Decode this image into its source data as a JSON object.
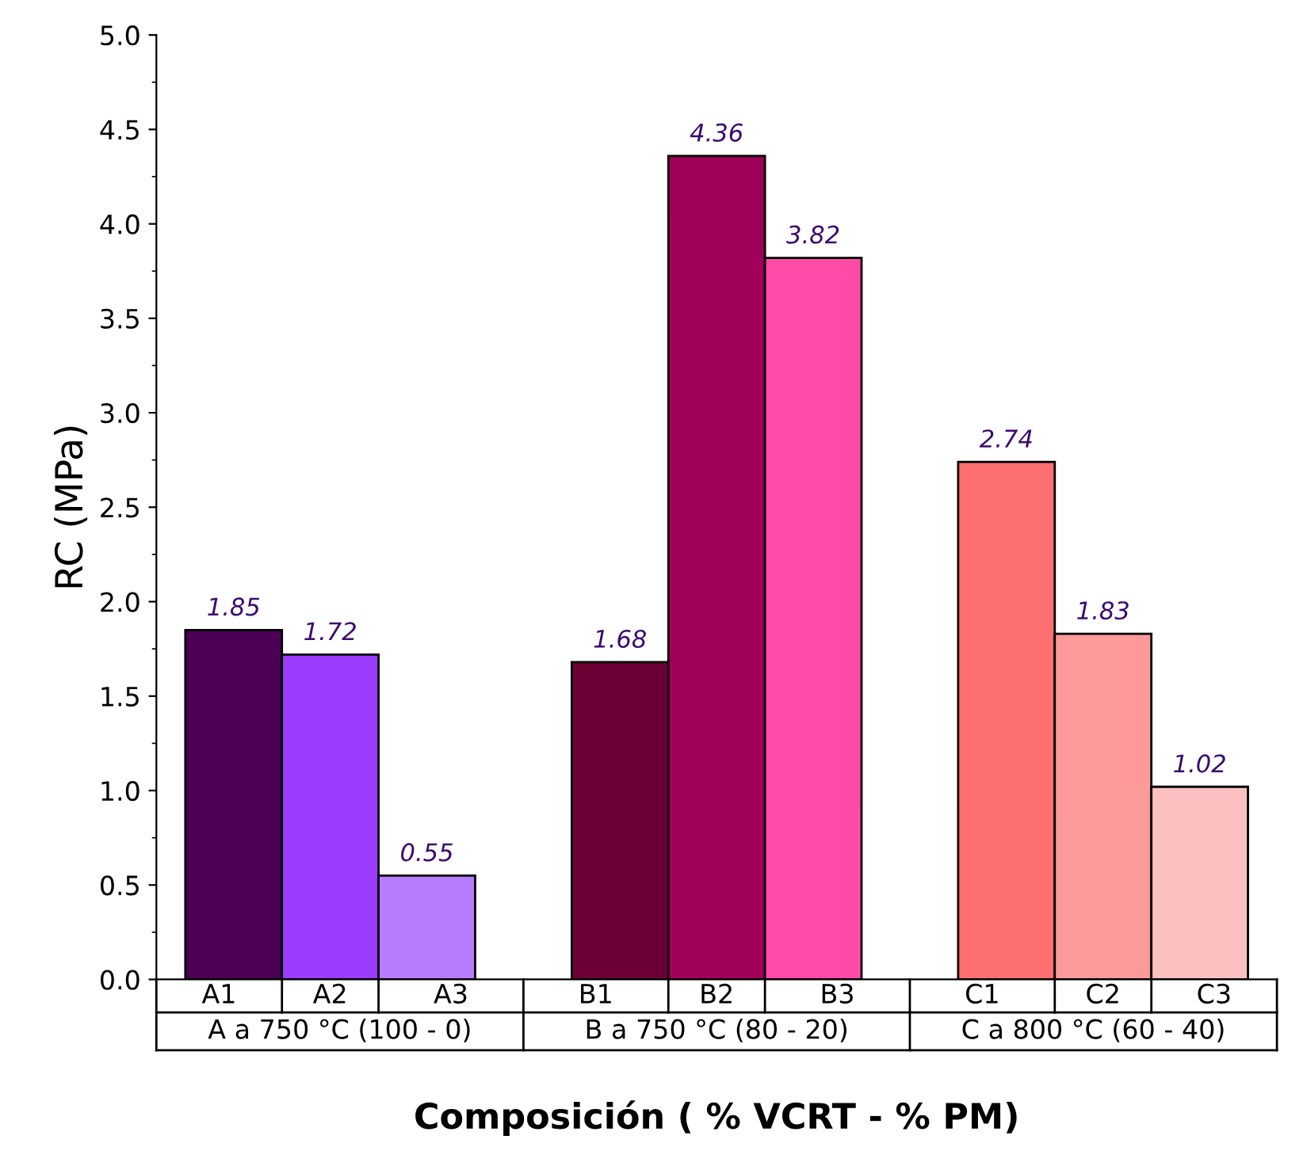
{
  "chart_data": {
    "type": "bar",
    "xlabel": "Composición ( % VCRT - % PM)",
    "ylabel": "RC (MPa)",
    "categories": [
      "A1",
      "A2",
      "A3",
      null,
      "B1",
      "B2",
      "B3",
      null,
      "C1",
      "C2",
      "C3"
    ],
    "values": [
      1.85,
      1.72,
      0.55,
      null,
      1.68,
      4.36,
      3.82,
      null,
      2.74,
      1.83,
      1.02
    ],
    "colors": [
      "#4b0055",
      "#9b3cff",
      "#b77bff",
      "#ffffff",
      "#6b0035",
      "#a0005a",
      "#ff4aa8",
      "#ffffff",
      "#fe6f6f",
      "#fc9a9a",
      "#fdc0c0"
    ],
    "ylim": [
      0,
      5
    ],
    "yticks": [
      {
        "value": 0,
        "label": "0.0"
      },
      0.5,
      {
        "value": 1,
        "label": "1.0"
      },
      1.5,
      {
        "value": 2,
        "label": "2.0"
      },
      2.5,
      {
        "value": 3,
        "label": "3.0"
      },
      3.5,
      {
        "value": 4,
        "label": "4.0"
      },
      4.5,
      {
        "value": 5,
        "label": "5.0"
      }
    ],
    "data_labels": true,
    "grid": false,
    "legend": false,
    "annotations": [
      "A a 750 °C (100 - 0)",
      "B a 750 °C (80 - 20)",
      "C a 800 °C (60 - 40)"
    ]
  }
}
